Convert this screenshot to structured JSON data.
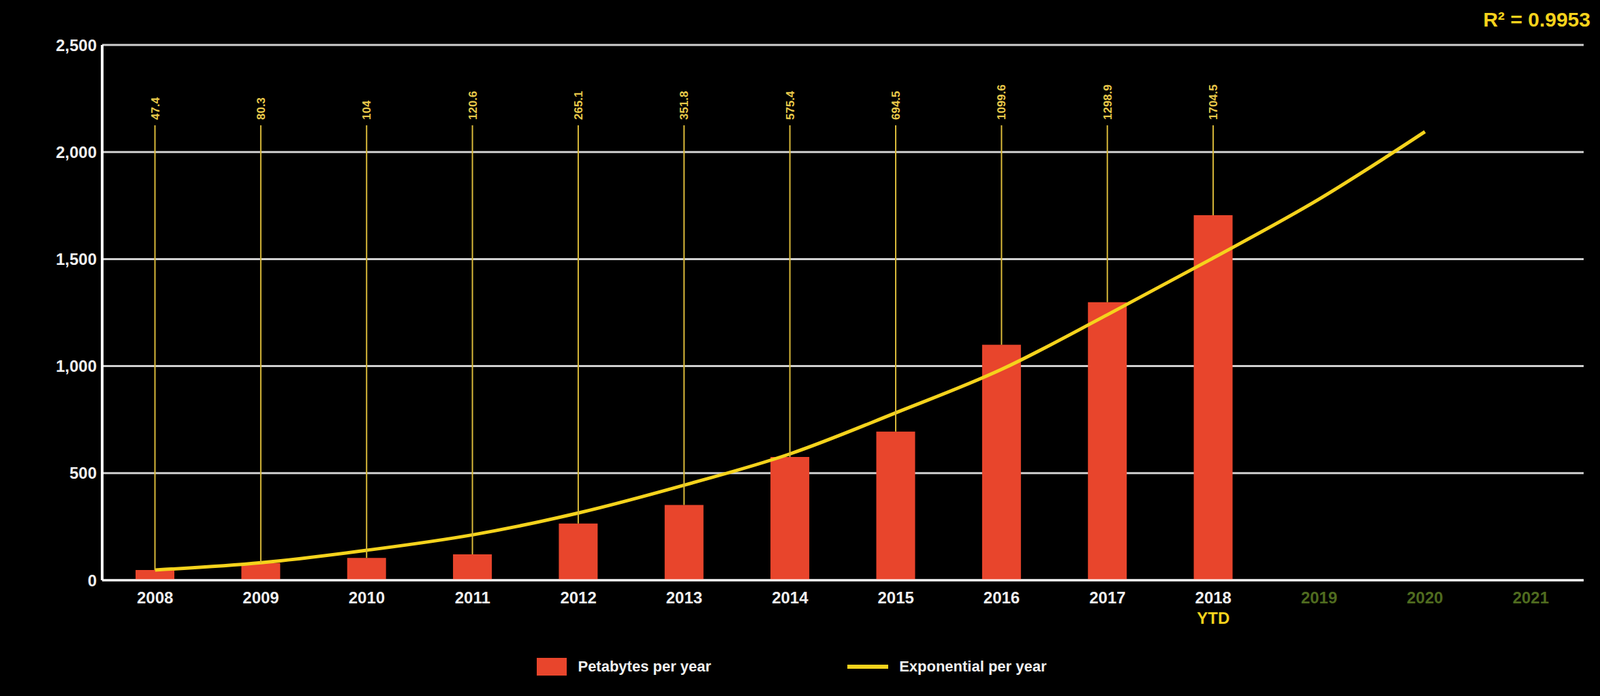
{
  "chart_data": {
    "type": "bar",
    "categories": [
      "2008",
      "2009",
      "2010",
      "2011",
      "2012",
      "2013",
      "2014",
      "2015",
      "2016",
      "2017",
      "2018 YTD",
      "2019",
      "2020",
      "2021"
    ],
    "series": [
      {
        "name": "Petabytes per year",
        "type": "bar",
        "color": "#e8452c",
        "data_labels": true,
        "values": [
          47.4,
          80.3,
          104,
          120.6,
          265.1,
          351.8,
          575.4,
          694.5,
          1099.6,
          1298.9,
          1704.5,
          null,
          null,
          null
        ]
      },
      {
        "name": "Exponential per year",
        "type": "line",
        "color": "#f5d31c",
        "values": [
          48,
          82,
          140,
          212,
          314,
          444,
          590,
          782,
          985,
          1240,
          1505,
          1780,
          2095,
          null
        ]
      }
    ],
    "ylim": [
      0,
      2500
    ],
    "yticks": [
      0,
      500,
      {
        "value": 1000,
        "label": "1,000"
      },
      {
        "value": 1500,
        "label": "1,500"
      },
      {
        "value": 2000,
        "label": "2,000"
      },
      {
        "value": 2500,
        "label": "2,500"
      }
    ],
    "grid": true,
    "legend": "bottom",
    "annotations": [
      {
        "text": "R² = 0.9953"
      }
    ]
  }
}
